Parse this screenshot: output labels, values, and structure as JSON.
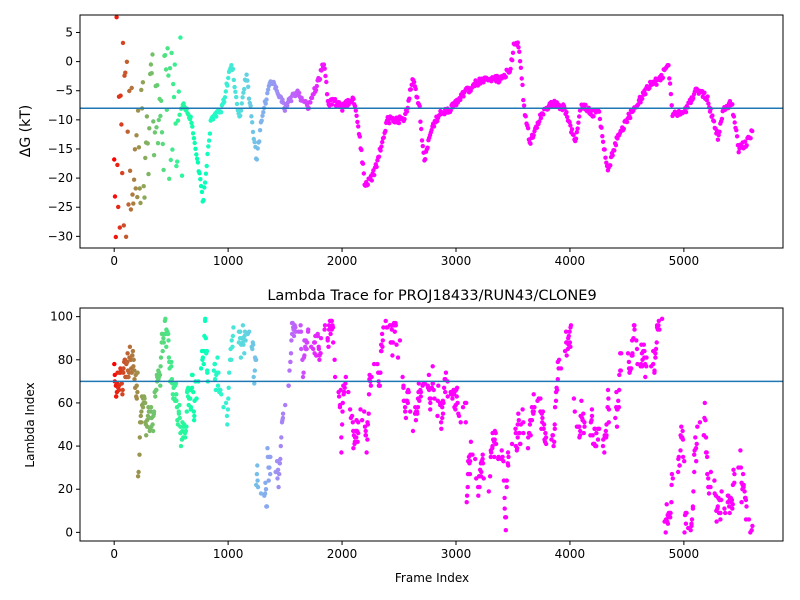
{
  "chart_data": [
    {
      "type": "scatter",
      "title": "",
      "xlabel": "",
      "ylabel": "ΔG (kT)",
      "xlim": [
        -300,
        5870
      ],
      "ylim": [
        -32,
        8
      ],
      "xticks": [
        0,
        1000,
        2000,
        3000,
        4000,
        5000
      ],
      "yticks": [
        5,
        0,
        -5,
        -10,
        -15,
        -20,
        -25,
        -30
      ],
      "hline": -8,
      "hline_color": "#1f77b4",
      "colormap": "rainbow (early frames red, late frames violet)",
      "grid": false,
      "trace_keypoints": [
        {
          "x": 600,
          "y": -7
        },
        {
          "x": 680,
          "y": -10
        },
        {
          "x": 780,
          "y": -24
        },
        {
          "x": 850,
          "y": -10
        },
        {
          "x": 950,
          "y": -8
        },
        {
          "x": 1030,
          "y": 0
        },
        {
          "x": 1100,
          "y": -10
        },
        {
          "x": 1160,
          "y": -2
        },
        {
          "x": 1250,
          "y": -17
        },
        {
          "x": 1300,
          "y": -9
        },
        {
          "x": 1380,
          "y": -3
        },
        {
          "x": 1450,
          "y": -6
        },
        {
          "x": 1500,
          "y": -8
        },
        {
          "x": 1600,
          "y": -5
        },
        {
          "x": 1700,
          "y": -8
        },
        {
          "x": 1800,
          "y": -3
        },
        {
          "x": 1840,
          "y": 0
        },
        {
          "x": 1880,
          "y": -7
        },
        {
          "x": 1950,
          "y": -7
        },
        {
          "x": 2000,
          "y": -8
        },
        {
          "x": 2100,
          "y": -6
        },
        {
          "x": 2150,
          "y": -12
        },
        {
          "x": 2200,
          "y": -21
        },
        {
          "x": 2260,
          "y": -20
        },
        {
          "x": 2300,
          "y": -18
        },
        {
          "x": 2400,
          "y": -10
        },
        {
          "x": 2550,
          "y": -10
        },
        {
          "x": 2620,
          "y": -3
        },
        {
          "x": 2680,
          "y": -8
        },
        {
          "x": 2720,
          "y": -17
        },
        {
          "x": 2780,
          "y": -12
        },
        {
          "x": 2850,
          "y": -9
        },
        {
          "x": 2950,
          "y": -8
        },
        {
          "x": 3050,
          "y": -6
        },
        {
          "x": 3150,
          "y": -4
        },
        {
          "x": 3250,
          "y": -3
        },
        {
          "x": 3400,
          "y": -3
        },
        {
          "x": 3480,
          "y": -1
        },
        {
          "x": 3510,
          "y": 3
        },
        {
          "x": 3550,
          "y": 3
        },
        {
          "x": 3600,
          "y": -8
        },
        {
          "x": 3650,
          "y": -14
        },
        {
          "x": 3750,
          "y": -9
        },
        {
          "x": 3850,
          "y": -7
        },
        {
          "x": 3950,
          "y": -8
        },
        {
          "x": 4050,
          "y": -14
        },
        {
          "x": 4100,
          "y": -7
        },
        {
          "x": 4200,
          "y": -9
        },
        {
          "x": 4250,
          "y": -8
        },
        {
          "x": 4330,
          "y": -19
        },
        {
          "x": 4400,
          "y": -14
        },
        {
          "x": 4500,
          "y": -10
        },
        {
          "x": 4600,
          "y": -7
        },
        {
          "x": 4700,
          "y": -4
        },
        {
          "x": 4800,
          "y": -3
        },
        {
          "x": 4860,
          "y": 0
        },
        {
          "x": 4900,
          "y": -9
        },
        {
          "x": 5000,
          "y": -9
        },
        {
          "x": 5100,
          "y": -5
        },
        {
          "x": 5200,
          "y": -6
        },
        {
          "x": 5300,
          "y": -13
        },
        {
          "x": 5350,
          "y": -8
        },
        {
          "x": 5420,
          "y": -7
        },
        {
          "x": 5480,
          "y": -15
        },
        {
          "x": 5550,
          "y": -14
        },
        {
          "x": 5600,
          "y": -12
        }
      ]
    },
    {
      "type": "scatter",
      "title": "Lambda Trace for PROJ18433/RUN43/CLONE9",
      "xlabel": "Frame Index",
      "ylabel": "Lambda Index",
      "xlim": [
        -300,
        5870
      ],
      "ylim": [
        -4,
        104
      ],
      "xticks": [
        0,
        1000,
        2000,
        3000,
        4000,
        5000
      ],
      "yticks": [
        0,
        20,
        40,
        60,
        80,
        100
      ],
      "hline": 70,
      "hline_color": "#1f77b4",
      "colormap": "rainbow (early frames red, late frames violet)",
      "grid": false,
      "frames_range": [
        0,
        5600
      ],
      "lambda_range": [
        0,
        99
      ]
    }
  ]
}
